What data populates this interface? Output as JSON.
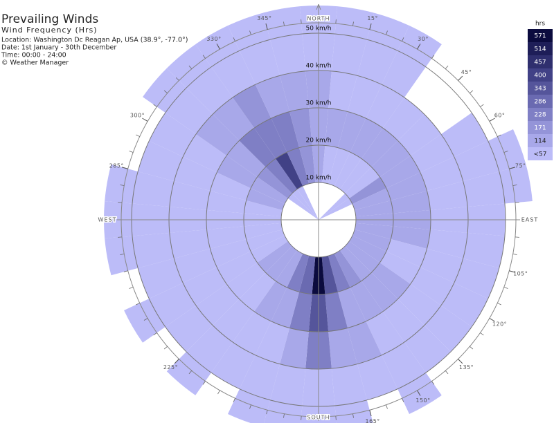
{
  "chart_data": {
    "type": "windrose",
    "title": "Prevailing Winds",
    "subtitle": "Wind Frequency (Hrs)",
    "notes": [
      "Location: Washington Dc Reagan Ap, USA (38.9°, -77.0°)",
      "Date: 1st January - 30th December",
      "Time: 00:00 - 24:00",
      "© Weather Manager"
    ],
    "rlim": [
      0,
      50
    ],
    "rticks": [
      {
        "value": 10,
        "label": "10 km/h"
      },
      {
        "value": 20,
        "label": "20 km/h"
      },
      {
        "value": 30,
        "label": "30 km/h"
      },
      {
        "value": 40,
        "label": "40 km/h"
      },
      {
        "value": 50,
        "label": "50 km/h"
      }
    ],
    "speed_bins": [
      0,
      10,
      20,
      30,
      40,
      50
    ],
    "cardinals": [
      {
        "value": 0,
        "label": "NORTH"
      },
      {
        "value": 90,
        "label": "EAST"
      },
      {
        "value": 180,
        "label": "SOUTH"
      },
      {
        "value": 270,
        "label": "WEST"
      }
    ],
    "dir_ticks": [
      {
        "value": 15,
        "label": "15°"
      },
      {
        "value": 30,
        "label": "30°"
      },
      {
        "value": 45,
        "label": "45°"
      },
      {
        "value": 60,
        "label": "60°"
      },
      {
        "value": 75,
        "label": "75°"
      },
      {
        "value": 105,
        "label": "105°"
      },
      {
        "value": 120,
        "label": "120°"
      },
      {
        "value": 135,
        "label": "135°"
      },
      {
        "value": 150,
        "label": "150°"
      },
      {
        "value": 165,
        "label": "165°"
      },
      {
        "value": 225,
        "label": "225°"
      },
      {
        "value": 285,
        "label": "285°"
      },
      {
        "value": 300,
        "label": "300°"
      },
      {
        "value": 330,
        "label": "330°"
      },
      {
        "value": 345,
        "label": "345°"
      }
    ],
    "directions": [
      0,
      10,
      20,
      30,
      40,
      50,
      60,
      70,
      80,
      90,
      100,
      110,
      120,
      130,
      140,
      150,
      160,
      170,
      180,
      190,
      200,
      210,
      220,
      230,
      240,
      250,
      260,
      270,
      280,
      290,
      300,
      310,
      320,
      330,
      340,
      350
    ],
    "values": [
      [
        null,
        120,
        170,
        130,
        60,
        40
      ],
      [
        null,
        100,
        150,
        110,
        60,
        40
      ],
      [
        null,
        90,
        130,
        90,
        50,
        40
      ],
      [
        null,
        90,
        120,
        80,
        50,
        40
      ],
      [
        null,
        100,
        120,
        70,
        null,
        null
      ],
      [
        40,
        110,
        130,
        80,
        null,
        null
      ],
      [
        40,
        180,
        160,
        90,
        40,
        null
      ],
      [
        null,
        160,
        150,
        90,
        40,
        30
      ],
      [
        null,
        150,
        140,
        80,
        40,
        30
      ],
      [
        null,
        140,
        130,
        80,
        40,
        null
      ],
      [
        null,
        140,
        120,
        70,
        40,
        null
      ],
      [
        null,
        130,
        110,
        60,
        30,
        null
      ],
      [
        null,
        130,
        110,
        70,
        40,
        null
      ],
      [
        null,
        140,
        120,
        80,
        40,
        null
      ],
      [
        null,
        150,
        130,
        90,
        50,
        null
      ],
      [
        null,
        180,
        150,
        100,
        50,
        30
      ],
      [
        null,
        230,
        170,
        120,
        60,
        null
      ],
      [
        null,
        350,
        230,
        170,
        80,
        40
      ],
      [
        null,
        580,
        350,
        230,
        100,
        50
      ],
      [
        null,
        290,
        230,
        150,
        70,
        40
      ],
      [
        null,
        230,
        170,
        110,
        60,
        40
      ],
      [
        null,
        170,
        130,
        80,
        40,
        null
      ],
      [
        null,
        140,
        110,
        70,
        40,
        30
      ],
      [
        null,
        120,
        100,
        60,
        30,
        null
      ],
      [
        null,
        110,
        90,
        60,
        30,
        30
      ],
      [
        null,
        100,
        90,
        60,
        40,
        null
      ],
      [
        null,
        100,
        90,
        60,
        40,
        30
      ],
      [
        null,
        110,
        100,
        70,
        40,
        30
      ],
      [
        null,
        110,
        100,
        80,
        40,
        30
      ],
      [
        null,
        120,
        110,
        90,
        50,
        null
      ],
      [
        null,
        130,
        130,
        110,
        60,
        null
      ],
      [
        40,
        180,
        170,
        130,
        70,
        30
      ],
      [
        40,
        230,
        230,
        170,
        90,
        30
      ],
      [
        40,
        400,
        240,
        180,
        80,
        40
      ],
      [
        null,
        240,
        230,
        150,
        70,
        40
      ],
      [
        null,
        180,
        200,
        140,
        60,
        40
      ]
    ],
    "legend": {
      "title": "hrs",
      "items": [
        571,
        514,
        457,
        400,
        343,
        286,
        228,
        171,
        114,
        {
          "value": 57,
          "label": "<57"
        }
      ],
      "colors": [
        "#0b0b3e",
        "#1e1e58",
        "#2f2f6e",
        "#414186",
        "#55559b",
        "#6a6ab1",
        "#7f7fc5",
        "#9494d8",
        "#a8a8e9",
        "#bcbcf8"
      ]
    }
  }
}
